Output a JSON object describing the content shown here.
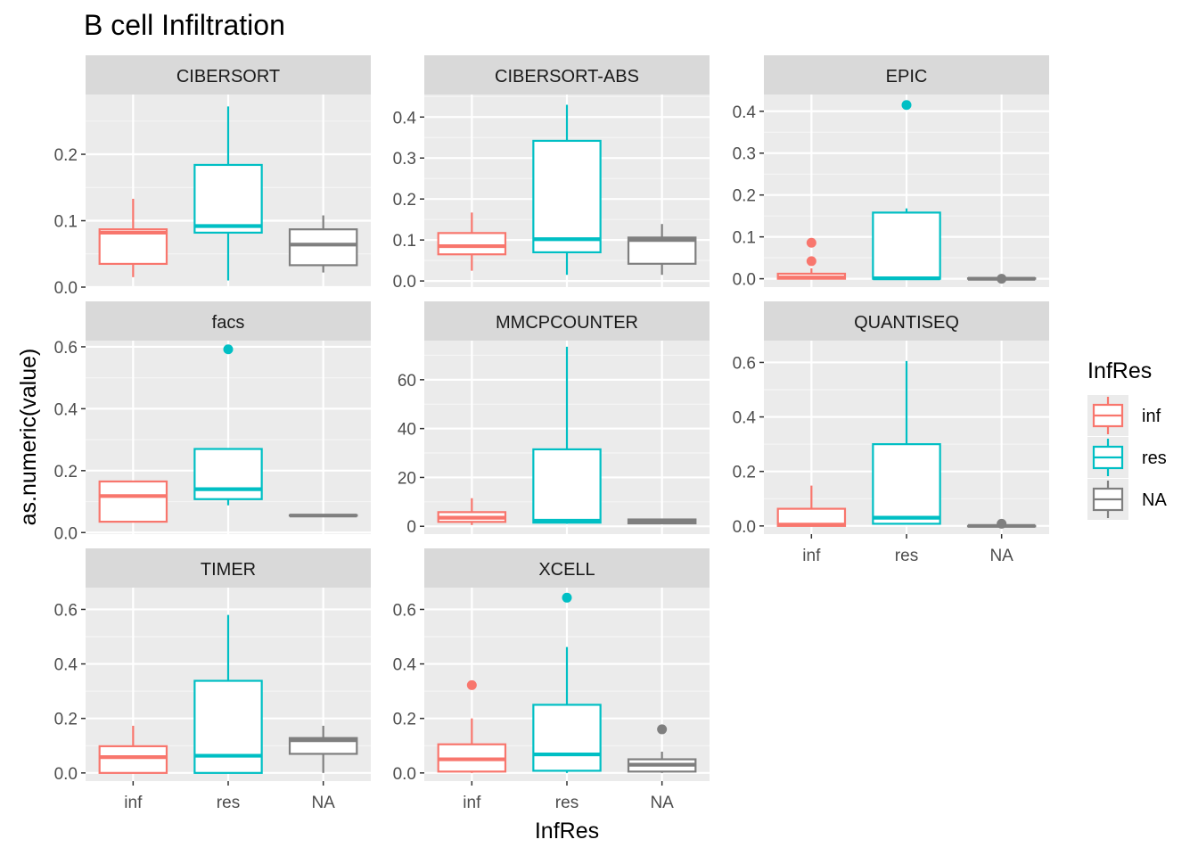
{
  "chart_data": {
    "type": "boxplot",
    "title": "B cell Infiltration",
    "xlabel": "InfRes",
    "ylabel": "as.numeric(value)",
    "categories": [
      "inf",
      "res",
      "NA"
    ],
    "legend": {
      "title": "InfRes",
      "placement": "right",
      "entries": [
        {
          "label": "inf",
          "color": "#F8766D"
        },
        {
          "label": "res",
          "color": "#00BFC4"
        },
        {
          "label": "NA",
          "color": "#7F7F7F"
        }
      ]
    },
    "grid": true,
    "facets": [
      {
        "name": "CIBERSORT",
        "ylim": [
          0,
          0.29
        ],
        "yticks": [
          0.0,
          0.1,
          0.2
        ],
        "tick_labels": [
          "0.0",
          "0.1",
          "0.2"
        ],
        "boxes": [
          {
            "category": "inf",
            "min": 0.015,
            "q1": 0.035,
            "median": 0.082,
            "q3": 0.087,
            "max": 0.133,
            "outliers": []
          },
          {
            "category": "res",
            "min": 0.01,
            "q1": 0.082,
            "median": 0.092,
            "q3": 0.184,
            "max": 0.272,
            "outliers": []
          },
          {
            "category": "NA",
            "min": 0.022,
            "q1": 0.033,
            "median": 0.064,
            "q3": 0.087,
            "max": 0.108,
            "outliers": []
          }
        ]
      },
      {
        "name": "CIBERSORT-ABS",
        "ylim": [
          -0.015,
          0.455
        ],
        "yticks": [
          0.0,
          0.1,
          0.2,
          0.3,
          0.4
        ],
        "tick_labels": [
          "0.0",
          "0.1",
          "0.2",
          "0.3",
          "0.4"
        ],
        "boxes": [
          {
            "category": "inf",
            "min": 0.025,
            "q1": 0.065,
            "median": 0.085,
            "q3": 0.117,
            "max": 0.167,
            "outliers": []
          },
          {
            "category": "res",
            "min": 0.015,
            "q1": 0.07,
            "median": 0.102,
            "q3": 0.342,
            "max": 0.43,
            "outliers": []
          },
          {
            "category": "NA",
            "min": 0.015,
            "q1": 0.042,
            "median": 0.1,
            "q3": 0.106,
            "max": 0.139,
            "outliers": []
          }
        ]
      },
      {
        "name": "EPIC",
        "ylim": [
          -0.02,
          0.44
        ],
        "yticks": [
          0.0,
          0.1,
          0.2,
          0.3,
          0.4
        ],
        "tick_labels": [
          "0.0",
          "0.1",
          "0.2",
          "0.3",
          "0.4"
        ],
        "boxes": [
          {
            "category": "inf",
            "min": 0.0,
            "q1": 0.0,
            "median": 0.003,
            "q3": 0.012,
            "max": 0.025,
            "outliers": [
              0.042,
              0.086
            ]
          },
          {
            "category": "res",
            "min": 0.0,
            "q1": 0.0,
            "median": 0.001,
            "q3": 0.158,
            "max": 0.168,
            "outliers": [
              0.415
            ]
          },
          {
            "category": "NA",
            "min": 0.0,
            "q1": 0.0,
            "median": 0.0,
            "q3": 0.001,
            "max": 0.001,
            "outliers": [
              0.0
            ]
          }
        ]
      },
      {
        "name": "facs",
        "ylim": [
          -0.005,
          0.62
        ],
        "yticks": [
          0.0,
          0.2,
          0.4,
          0.6
        ],
        "tick_labels": [
          "0.0",
          "0.2",
          "0.4",
          "0.6"
        ],
        "boxes": [
          {
            "category": "inf",
            "min": 0.035,
            "q1": 0.035,
            "median": 0.118,
            "q3": 0.165,
            "max": 0.165,
            "outliers": []
          },
          {
            "category": "res",
            "min": 0.088,
            "q1": 0.108,
            "median": 0.14,
            "q3": 0.27,
            "max": 0.27,
            "outliers": [
              0.592
            ]
          },
          {
            "category": "NA",
            "min": 0.055,
            "q1": 0.055,
            "median": 0.055,
            "q3": 0.056,
            "max": 0.056,
            "outliers": []
          }
        ]
      },
      {
        "name": "MMCPCOUNTER",
        "ylim": [
          -3.2,
          76
        ],
        "yticks": [
          0,
          20,
          40,
          60
        ],
        "tick_labels": [
          "0",
          "20",
          "40",
          "60"
        ],
        "boxes": [
          {
            "category": "inf",
            "min": 0.5,
            "q1": 1.8,
            "median": 3.5,
            "q3": 5.8,
            "max": 11.5,
            "outliers": []
          },
          {
            "category": "res",
            "min": 1.0,
            "q1": 1.5,
            "median": 2.3,
            "q3": 31.5,
            "max": 73.5,
            "outliers": []
          },
          {
            "category": "NA",
            "min": 1.0,
            "q1": 1.2,
            "median": 2.0,
            "q3": 2.8,
            "max": 3.0,
            "outliers": []
          }
        ]
      },
      {
        "name": "QUANTISEQ",
        "ylim": [
          -0.03,
          0.68
        ],
        "yticks": [
          0.0,
          0.2,
          0.4,
          0.6
        ],
        "tick_labels": [
          "0.0",
          "0.2",
          "0.4",
          "0.6"
        ],
        "boxes": [
          {
            "category": "inf",
            "min": 0.0,
            "q1": 0.0,
            "median": 0.005,
            "q3": 0.063,
            "max": 0.148,
            "outliers": []
          },
          {
            "category": "res",
            "min": 0.005,
            "q1": 0.008,
            "median": 0.03,
            "q3": 0.3,
            "max": 0.605,
            "outliers": []
          },
          {
            "category": "NA",
            "min": 0.0,
            "q1": 0.0,
            "median": 0.0,
            "q3": 0.0,
            "max": 0.0,
            "outliers": [
              0.008
            ]
          }
        ]
      },
      {
        "name": "TIMER",
        "ylim": [
          -0.03,
          0.68
        ],
        "yticks": [
          0.0,
          0.2,
          0.4,
          0.6
        ],
        "tick_labels": [
          "0.0",
          "0.2",
          "0.4",
          "0.6"
        ],
        "boxes": [
          {
            "category": "inf",
            "min": 0.0,
            "q1": 0.0,
            "median": 0.058,
            "q3": 0.098,
            "max": 0.173,
            "outliers": []
          },
          {
            "category": "res",
            "min": 0.0,
            "q1": 0.0,
            "median": 0.063,
            "q3": 0.338,
            "max": 0.58,
            "outliers": []
          },
          {
            "category": "NA",
            "min": 0.0,
            "q1": 0.07,
            "median": 0.12,
            "q3": 0.128,
            "max": 0.173,
            "outliers": []
          }
        ]
      },
      {
        "name": "XCELL",
        "ylim": [
          -0.03,
          0.68
        ],
        "yticks": [
          0.0,
          0.2,
          0.4,
          0.6
        ],
        "tick_labels": [
          "0.0",
          "0.2",
          "0.4",
          "0.6"
        ],
        "boxes": [
          {
            "category": "inf",
            "min": 0.0,
            "q1": 0.005,
            "median": 0.05,
            "q3": 0.105,
            "max": 0.2,
            "outliers": [
              0.322
            ]
          },
          {
            "category": "res",
            "min": 0.0,
            "q1": 0.008,
            "median": 0.068,
            "q3": 0.25,
            "max": 0.462,
            "outliers": [
              0.643
            ]
          },
          {
            "category": "NA",
            "min": 0.0,
            "q1": 0.005,
            "median": 0.03,
            "q3": 0.05,
            "max": 0.078,
            "outliers": [
              0.16
            ]
          }
        ]
      }
    ]
  }
}
